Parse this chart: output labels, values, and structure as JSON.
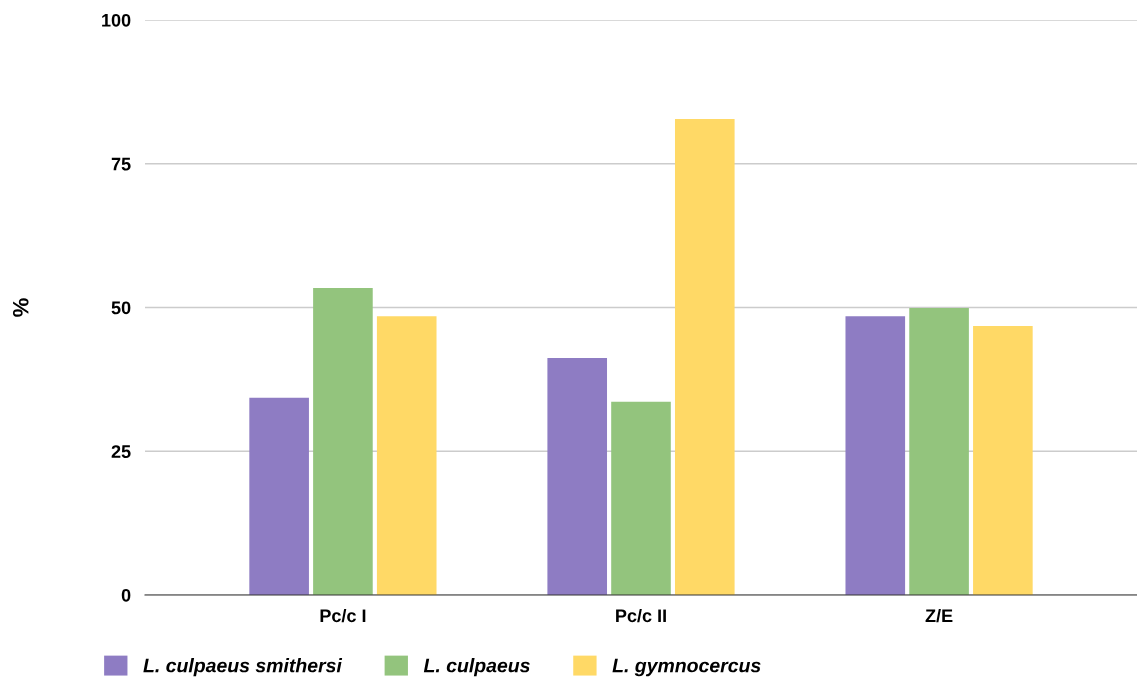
{
  "chart_data": {
    "type": "bar",
    "ylabel": "%",
    "categories": [
      "Pc/c I",
      "Pc/c II",
      "Z/E"
    ],
    "series": [
      {
        "name": "L. culpaeus smithersi",
        "color": "#8e7cc3",
        "values": [
          34.3,
          41.2,
          48.5
        ]
      },
      {
        "name": "L. culpaeus",
        "color": "#93c47d",
        "values": [
          53.4,
          33.6,
          49.9
        ]
      },
      {
        "name": "L. gymnocercus",
        "color": "#ffd966",
        "values": [
          48.5,
          82.8,
          46.8
        ]
      }
    ],
    "ylim": [
      0,
      100
    ],
    "yticks": [
      0,
      25,
      50,
      75,
      100
    ],
    "grid": "y",
    "legend": "bottom"
  }
}
